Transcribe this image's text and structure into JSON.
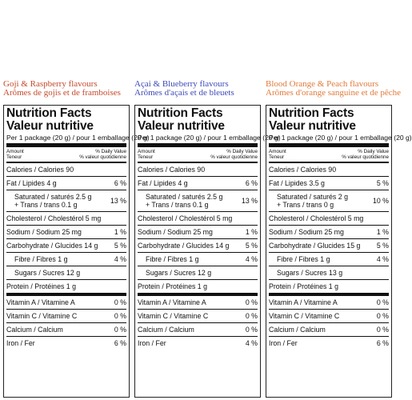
{
  "header": {
    "serving": "Per 1 package (20 g) / pour 1 emballage (20 g)",
    "amount_en": "Amount",
    "amount_fr": "Teneur",
    "dv_en": "% Daily Value",
    "dv_fr": "% valeur quotidienne",
    "title_en": "Nutrition Facts",
    "title_fr": "Valeur nutritive"
  },
  "colors": {
    "col1": "#c44a2c",
    "col2": "#3f4ab8",
    "col3": "#e07a3a"
  },
  "panels": [
    {
      "flavour_en_a": "Goji & Raspberry flavours",
      "flavour_fr": "Arômes de gojis et de framboises",
      "calories": "Calories / Calories 90",
      "fat": "Fat / Lipides 4 g",
      "fat_dv": "6 %",
      "sat": "Saturated / saturés 2.5 g",
      "trans": "+ Trans / trans 0.1 g",
      "sat_dv": "13 %",
      "chol": "Cholesterol / Cholestérol 5 mg",
      "sodium": "Sodium / Sodium 25 mg",
      "sodium_dv": "1 %",
      "carb": "Carbohydrate / Glucides 14 g",
      "carb_dv": "5 %",
      "fibre": "Fibre / Fibres 1 g",
      "fibre_dv": "4 %",
      "sugars": "Sugars / Sucres 12 g",
      "protein": "Protein / Protéines 1 g",
      "vita": "Vitamin A / Vitamine A",
      "vita_dv": "0 %",
      "vitc": "Vitamin C / Vitamine C",
      "vitc_dv": "0 %",
      "calc": "Calcium / Calcium",
      "calc_dv": "0 %",
      "iron": "Iron / Fer",
      "iron_dv": "6 %"
    },
    {
      "flavour_en_a": "Açai & Blueberry flavours",
      "flavour_fr": "Arômes d'açais et de bleuets",
      "calories": "Calories / Calories 90",
      "fat": "Fat / Lipides 4 g",
      "fat_dv": "6 %",
      "sat": "Saturated / saturés 2.5 g",
      "trans": "+ Trans / trans 0.1 g",
      "sat_dv": "13 %",
      "chol": "Cholesterol / Cholestérol 5 mg",
      "sodium": "Sodium / Sodium 25 mg",
      "sodium_dv": "1 %",
      "carb": "Carbohydrate / Glucides 14 g",
      "carb_dv": "5 %",
      "fibre": "Fibre / Fibres 1 g",
      "fibre_dv": "4 %",
      "sugars": "Sugars / Sucres 12 g",
      "protein": "Protein / Protéines 1 g",
      "vita": "Vitamin A / Vitamine A",
      "vita_dv": "0 %",
      "vitc": "Vitamin C / Vitamine C",
      "vitc_dv": "0 %",
      "calc": "Calcium / Calcium",
      "calc_dv": "0 %",
      "iron": "Iron / Fer",
      "iron_dv": "4 %"
    },
    {
      "flavour_en_a": "Blood Orange & Peach flavours",
      "flavour_fr": "Arômes d'orange sanguine et de pêche",
      "calories": "Calories / Calories 90",
      "fat": "Fat / Lipides 3.5 g",
      "fat_dv": "5 %",
      "sat": "Saturated / saturés 2 g",
      "trans": "+ Trans / trans 0 g",
      "sat_dv": "10 %",
      "chol": "Cholesterol / Cholestérol 5 mg",
      "sodium": "Sodium / Sodium 25 mg",
      "sodium_dv": "1 %",
      "carb": "Carbohydrate / Glucides 15 g",
      "carb_dv": "5 %",
      "fibre": "Fibre / Fibres 1 g",
      "fibre_dv": "4 %",
      "sugars": "Sugars / Sucres 13 g",
      "protein": "Protein / Protéines 1 g",
      "vita": "Vitamin A / Vitamine A",
      "vita_dv": "0 %",
      "vitc": "Vitamin C / Vitamine C",
      "vitc_dv": "0 %",
      "calc": "Calcium / Calcium",
      "calc_dv": "0 %",
      "iron": "Iron / Fer",
      "iron_dv": "6 %"
    }
  ]
}
